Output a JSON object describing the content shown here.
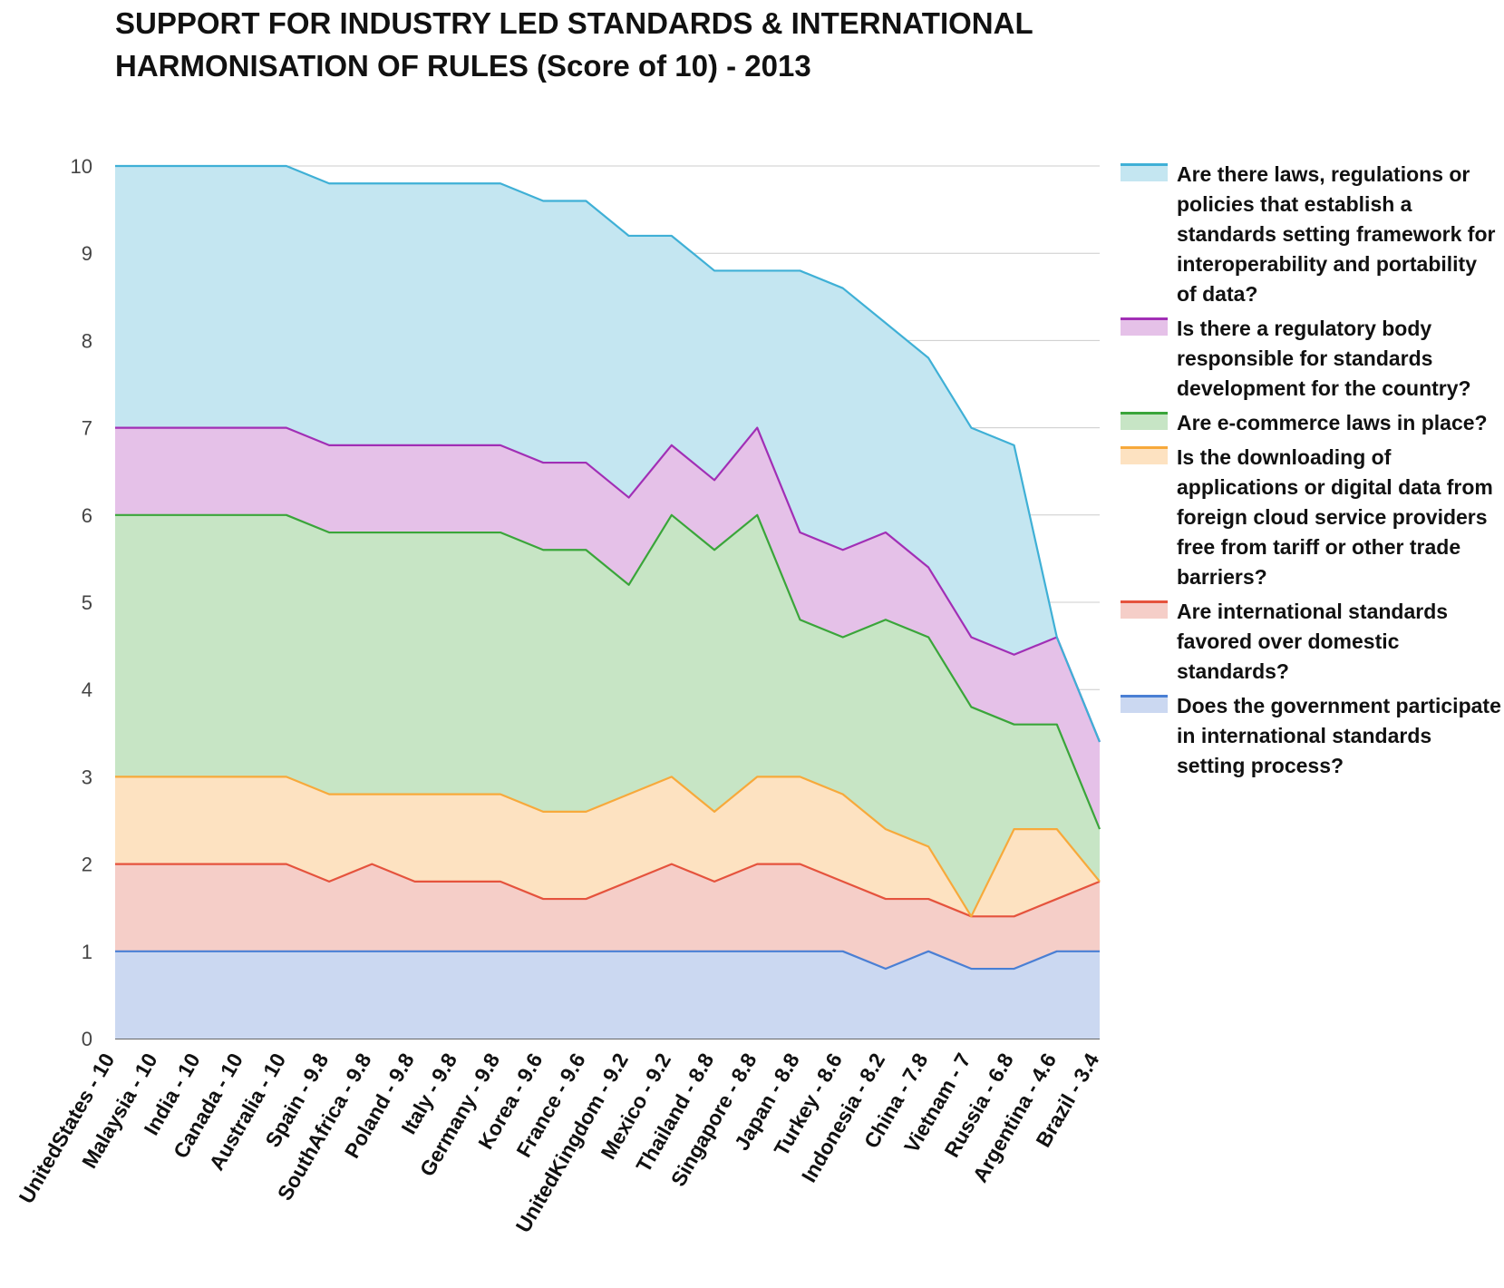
{
  "chart_data": {
    "type": "area",
    "stacked": true,
    "title": "SUPPORT FOR INDUSTRY LED STANDARDS & INTERNATIONAL HARMONISATION OF RULES (Score of 10) - 2013",
    "xlabel": "",
    "ylabel": "",
    "ylim": [
      0,
      10
    ],
    "yticks": [
      "0",
      "1",
      "2",
      "3",
      "4",
      "5",
      "6",
      "7",
      "8",
      "9",
      "10"
    ],
    "grid": true,
    "legend_position": "right",
    "categories": [
      "UnitedStates - 10",
      "Malaysia - 10",
      "India - 10",
      "Canada - 10",
      "Australia - 10",
      "Spain - 9.8",
      "SouthAfrica - 9.8",
      "Poland - 9.8",
      "Italy - 9.8",
      "Germany - 9.8",
      "Korea - 9.6",
      "France - 9.6",
      "UnitedKingdom - 9.2",
      "Mexico - 9.2",
      "Thailand - 8.8",
      "Singapore - 8.8",
      "Japan - 8.8",
      "Turkey - 8.6",
      "Indonesia - 8.2",
      "China - 7.8",
      "Vietnam - 7",
      "Russia - 6.8",
      "Argentina - 4.6",
      "Brazil - 3.4"
    ],
    "series": [
      {
        "name": "Does the government participate in international standards setting process?",
        "color": "#4a7fd4",
        "fill": "#cbd8f1",
        "values": [
          1,
          1,
          1,
          1,
          1,
          1,
          1,
          1,
          1,
          1,
          1,
          1,
          1,
          1,
          1,
          1,
          1,
          1,
          0.8,
          1,
          0.8,
          0.8,
          1,
          1
        ]
      },
      {
        "name": "Are international standards favored over domestic standards?",
        "color": "#e5533d",
        "fill": "#f5cec8",
        "values": [
          1,
          1,
          1,
          1,
          1,
          0.8,
          1,
          0.8,
          0.8,
          0.8,
          0.6,
          0.6,
          0.8,
          1,
          0.8,
          1,
          1,
          0.8,
          0.8,
          0.6,
          0.6,
          0.6,
          0.6,
          0.8
        ]
      },
      {
        "name": "Is the downloading of applications or digital data from foreign cloud service providers free from tariff or other trade barriers?",
        "color": "#f7a93b",
        "fill": "#fde2c1",
        "values": [
          1,
          1,
          1,
          1,
          1,
          1,
          0.8,
          1,
          1,
          1,
          1,
          1,
          1,
          1,
          0.8,
          1,
          1,
          1,
          0.8,
          0.6,
          0,
          1,
          0.8,
          0
        ]
      },
      {
        "name": "Are e-commerce laws in place?",
        "color": "#3aa53a",
        "fill": "#c7e5c5",
        "values": [
          3,
          3,
          3,
          3,
          3,
          3,
          3,
          3,
          3,
          3,
          3,
          3,
          2.4,
          3,
          3,
          3,
          1.8,
          1.8,
          2.4,
          2.4,
          2.4,
          1.2,
          1.2,
          0.6
        ]
      },
      {
        "name": "Is there a regulatory body responsible for standards development for the country?",
        "color": "#a12fb5",
        "fill": "#e5c1e8",
        "values": [
          1,
          1,
          1,
          1,
          1,
          1,
          1,
          1,
          1,
          1,
          1,
          1,
          1,
          0.8,
          0.8,
          1,
          1,
          1,
          1,
          0.8,
          0.8,
          0.8,
          1,
          1
        ]
      },
      {
        "name": "Are there laws, regulations or policies that establish a standards setting framework for interoperability and portability of data?",
        "color": "#3fb0d6",
        "fill": "#c4e6f1",
        "values": [
          3,
          3,
          3,
          3,
          3,
          3,
          3,
          3,
          3,
          3,
          3,
          3,
          3,
          2.4,
          2.4,
          1.8,
          3,
          3,
          2.4,
          2.4,
          2.4,
          2.4,
          0,
          0
        ]
      }
    ]
  }
}
